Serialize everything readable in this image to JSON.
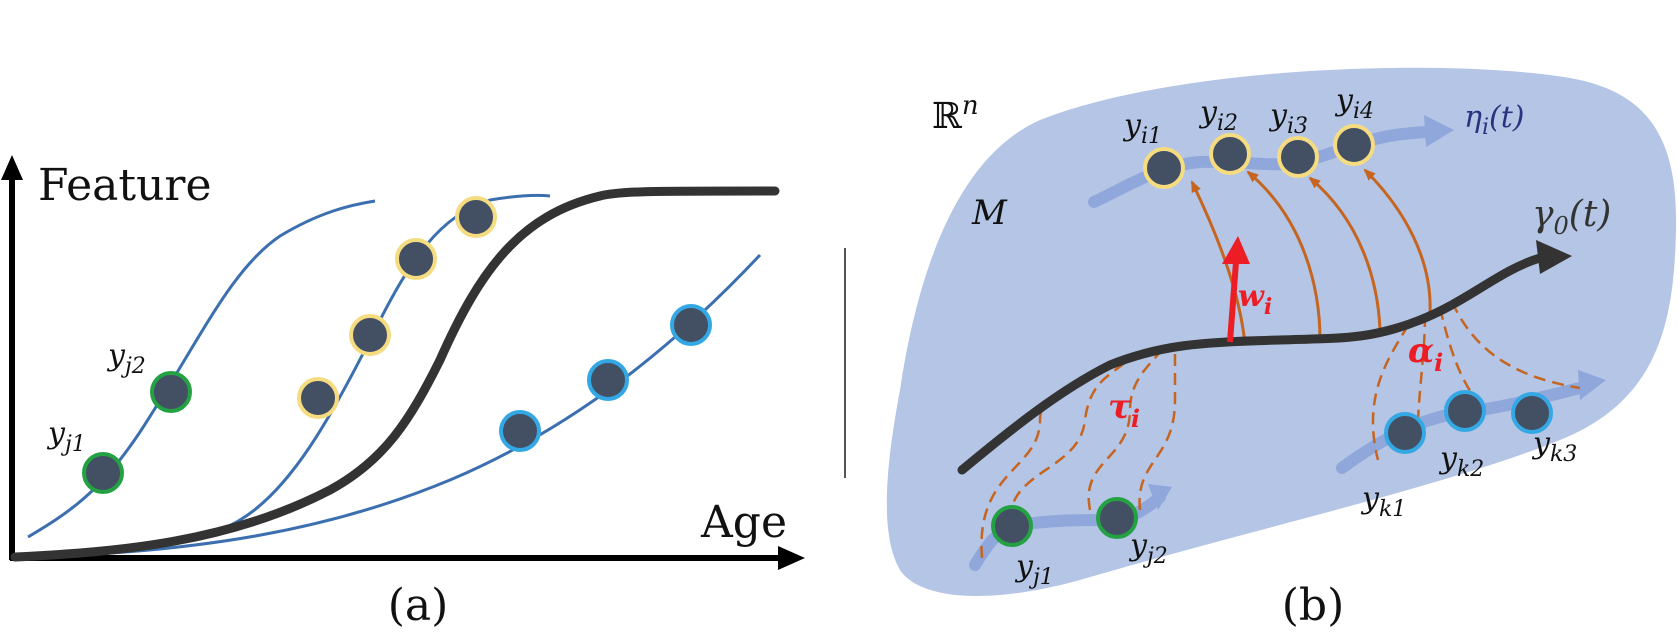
{
  "panel_a": {
    "caption": "(a)",
    "y_axis_label": "Feature",
    "x_axis_label": "Age",
    "point_labels": {
      "j1": "y",
      "j1_sub": "j1",
      "j2": "y",
      "j2_sub": "j2"
    }
  },
  "panel_b": {
    "caption": "(b)",
    "space_label": "ℝ",
    "space_sup": "n",
    "manifold_label": "M",
    "reference_curve_label": "γ",
    "reference_curve_sub": "0",
    "reference_curve_arg": "(t)",
    "individual_curve_label": "η",
    "individual_curve_sub": "i",
    "individual_curve_arg": "(t)",
    "w_label": "w",
    "w_sub": "i",
    "tau_label": "τ",
    "tau_sub": "i",
    "alpha_label": "α",
    "alpha_sub": "i",
    "y_symbol": "y",
    "i_subs": [
      "i1",
      "i2",
      "i3",
      "i4"
    ],
    "j_subs": [
      "j1",
      "j2"
    ],
    "k_subs": [
      "k1",
      "k2",
      "k3"
    ]
  },
  "colors": {
    "point_fill": "#434f63",
    "ring_yellow": "#f5dc80",
    "ring_green": "#23a143",
    "ring_cyan": "#34a8e4",
    "curve_blue": "#3b6faf",
    "mean_curve": "#333333",
    "manifold_fill": "#b4c5e5",
    "light_path": "#8fa7da",
    "orange": "#c6651f",
    "red": "#ec1d25",
    "eta_color": "#2b3380"
  }
}
